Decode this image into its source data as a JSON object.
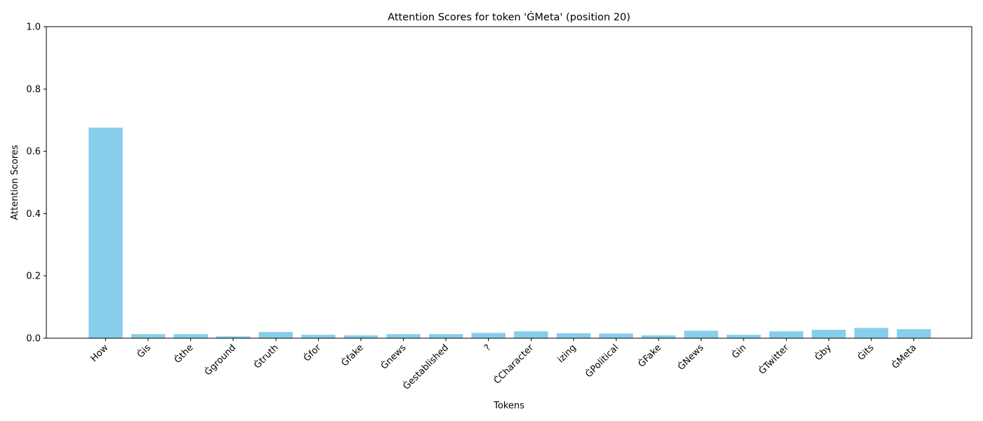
{
  "chart_data": {
    "type": "bar",
    "title": "Attention Scores for token 'ĠMeta' (position 20)",
    "xlabel": "Tokens",
    "ylabel": "Attention Scores",
    "categories": [
      "How",
      "Ġis",
      "Ġthe",
      "Ġground",
      "Ġtruth",
      "Ġfor",
      "Ġfake",
      "Ġnews",
      "Ġestablished",
      "?",
      "ĊCharacter",
      "izing",
      "ĠPolitical",
      "ĠFake",
      "ĠNews",
      "Ġin",
      "ĠTwitter",
      "Ġby",
      "Ġits",
      "ĠMeta"
    ],
    "values": [
      0.676,
      0.013,
      0.013,
      0.006,
      0.02,
      0.011,
      0.009,
      0.013,
      0.013,
      0.017,
      0.022,
      0.016,
      0.015,
      0.009,
      0.024,
      0.011,
      0.022,
      0.027,
      0.033,
      0.029
    ],
    "ylim": [
      0,
      1.0
    ],
    "yticks": [
      0.0,
      0.2,
      0.4,
      0.6,
      0.8,
      1.0
    ],
    "ytick_labels": [
      "0.0",
      "0.2",
      "0.4",
      "0.6",
      "0.8",
      "1.0"
    ],
    "bar_color": "#87CEEB",
    "grid": false,
    "legend": "none"
  }
}
